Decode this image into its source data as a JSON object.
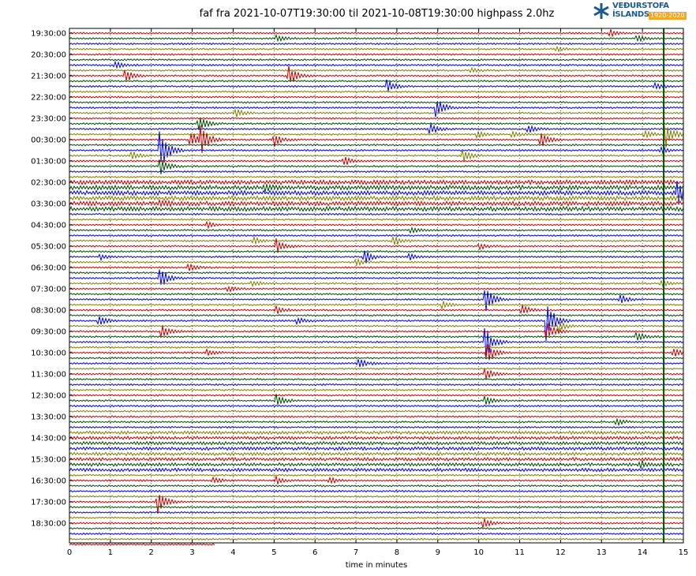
{
  "chart_data": {
    "type": "line",
    "title": "faf fra 2021-10-07T19:30:00 til 2021-10-08T19:30:00 highpass 2.0hz",
    "xlabel": "time in minutes",
    "ylabel": "",
    "xlim": [
      0,
      15
    ],
    "x_ticks": [
      "0",
      "1",
      "2",
      "3",
      "4",
      "5",
      "6",
      "7",
      "8",
      "9",
      "10",
      "11",
      "12",
      "13",
      "14",
      "15"
    ],
    "y_ticks": [
      "19:30:00",
      "20:30:00",
      "21:30:00",
      "22:30:00",
      "23:30:00",
      "00:30:00",
      "01:30:00",
      "02:30:00",
      "03:30:00",
      "04:30:00",
      "05:30:00",
      "06:30:00",
      "07:30:00",
      "08:30:00",
      "09:30:00",
      "10:30:00",
      "11:30:00",
      "12:30:00",
      "13:30:00",
      "14:30:00",
      "15:30:00",
      "16:30:00",
      "17:30:00",
      "18:30:00"
    ],
    "traces_per_hour": 4,
    "trace_count": 97,
    "last_trace_end_minute": 3.55,
    "series_colors": [
      "#cc0000",
      "#004d00",
      "#0000ff",
      "#808000"
    ],
    "grid": "vertical dotted",
    "events": [
      {
        "trace": 0,
        "minute": 13.2,
        "amp": 1.0
      },
      {
        "trace": 1,
        "minute": 5.05,
        "amp": 1.0
      },
      {
        "trace": 1,
        "minute": 13.85,
        "amp": 1.2
      },
      {
        "trace": 3,
        "minute": 11.9,
        "amp": 0.8
      },
      {
        "trace": 6,
        "minute": 1.1,
        "amp": 1.0
      },
      {
        "trace": 7,
        "minute": 9.8,
        "amp": 0.8
      },
      {
        "trace": 8,
        "minute": 1.35,
        "amp": 2.0
      },
      {
        "trace": 8,
        "minute": 5.35,
        "amp": 3.0
      },
      {
        "trace": 10,
        "minute": 7.75,
        "amp": 2.0
      },
      {
        "trace": 10,
        "minute": 14.3,
        "amp": 1.0
      },
      {
        "trace": 14,
        "minute": 8.95,
        "amp": 3.0
      },
      {
        "trace": 15,
        "minute": 4.05,
        "amp": 1.2
      },
      {
        "trace": 17,
        "minute": 3.15,
        "amp": 2.5
      },
      {
        "trace": 18,
        "minute": 8.8,
        "amp": 1.5
      },
      {
        "trace": 18,
        "minute": 11.2,
        "amp": 1.2
      },
      {
        "trace": 19,
        "minute": 9.95,
        "amp": 1.0
      },
      {
        "trace": 19,
        "minute": 10.8,
        "amp": 1.0
      },
      {
        "trace": 19,
        "minute": 14.05,
        "amp": 1.2
      },
      {
        "trace": 19,
        "minute": 14.55,
        "amp": 4.0
      },
      {
        "trace": 20,
        "minute": 2.95,
        "amp": 2.5
      },
      {
        "trace": 20,
        "minute": 3.2,
        "amp": 4.0
      },
      {
        "trace": 20,
        "minute": 5.0,
        "amp": 2.0
      },
      {
        "trace": 20,
        "minute": 11.5,
        "amp": 2.5
      },
      {
        "trace": 22,
        "minute": 2.2,
        "amp": 7.0
      },
      {
        "trace": 22,
        "minute": 14.45,
        "amp": 1.0
      },
      {
        "trace": 23,
        "minute": 1.5,
        "amp": 1.5
      },
      {
        "trace": 23,
        "minute": 9.6,
        "amp": 2.0
      },
      {
        "trace": 24,
        "minute": 6.7,
        "amp": 1.5
      },
      {
        "trace": 25,
        "minute": 2.2,
        "amp": 2.5
      },
      {
        "trace": 29,
        "minute": 4.75,
        "amp": 1.0
      },
      {
        "trace": 30,
        "minute": 14.85,
        "amp": 3.0
      },
      {
        "trace": 32,
        "minute": 2.2,
        "amp": 1.0
      },
      {
        "trace": 36,
        "minute": 3.35,
        "amp": 1.0
      },
      {
        "trace": 37,
        "minute": 8.35,
        "amp": 1.0
      },
      {
        "trace": 39,
        "minute": 4.5,
        "amp": 1.0
      },
      {
        "trace": 39,
        "minute": 7.9,
        "amp": 1.5
      },
      {
        "trace": 40,
        "minute": 5.05,
        "amp": 2.0
      },
      {
        "trace": 40,
        "minute": 10.0,
        "amp": 1.0
      },
      {
        "trace": 42,
        "minute": 0.75,
        "amp": 1.0
      },
      {
        "trace": 42,
        "minute": 7.2,
        "amp": 2.0
      },
      {
        "trace": 42,
        "minute": 8.3,
        "amp": 1.0
      },
      {
        "trace": 43,
        "minute": 7.0,
        "amp": 1.0
      },
      {
        "trace": 44,
        "minute": 2.9,
        "amp": 1.0
      },
      {
        "trace": 46,
        "minute": 2.2,
        "amp": 3.0
      },
      {
        "trace": 47,
        "minute": 4.45,
        "amp": 1.0
      },
      {
        "trace": 47,
        "minute": 14.45,
        "amp": 1.0
      },
      {
        "trace": 48,
        "minute": 3.85,
        "amp": 1.0
      },
      {
        "trace": 50,
        "minute": 10.15,
        "amp": 4.0
      },
      {
        "trace": 50,
        "minute": 13.45,
        "amp": 1.5
      },
      {
        "trace": 51,
        "minute": 9.1,
        "amp": 1.0
      },
      {
        "trace": 52,
        "minute": 11.05,
        "amp": 1.5
      },
      {
        "trace": 52,
        "minute": 5.05,
        "amp": 1.0
      },
      {
        "trace": 54,
        "minute": 0.7,
        "amp": 1.5
      },
      {
        "trace": 54,
        "minute": 5.55,
        "amp": 1.0
      },
      {
        "trace": 54,
        "minute": 11.65,
        "amp": 6.0
      },
      {
        "trace": 55,
        "minute": 11.95,
        "amp": 1.5
      },
      {
        "trace": 56,
        "minute": 2.25,
        "amp": 2.0
      },
      {
        "trace": 56,
        "minute": 11.65,
        "amp": 3.0
      },
      {
        "trace": 57,
        "minute": 13.85,
        "amp": 1.5
      },
      {
        "trace": 58,
        "minute": 10.15,
        "amp": 5.0
      },
      {
        "trace": 60,
        "minute": 3.35,
        "amp": 1.0
      },
      {
        "trace": 60,
        "minute": 10.2,
        "amp": 3.0
      },
      {
        "trace": 60,
        "minute": 14.75,
        "amp": 1.5
      },
      {
        "trace": 62,
        "minute": 7.05,
        "amp": 1.5
      },
      {
        "trace": 64,
        "minute": 10.15,
        "amp": 2.0
      },
      {
        "trace": 69,
        "minute": 5.05,
        "amp": 2.0
      },
      {
        "trace": 69,
        "minute": 10.15,
        "amp": 1.5
      },
      {
        "trace": 73,
        "minute": 13.35,
        "amp": 1.0
      },
      {
        "trace": 81,
        "minute": 13.95,
        "amp": 1.0
      },
      {
        "trace": 84,
        "minute": 3.5,
        "amp": 1.0
      },
      {
        "trace": 84,
        "minute": 5.05,
        "amp": 1.0
      },
      {
        "trace": 84,
        "minute": 6.35,
        "amp": 1.0
      },
      {
        "trace": 88,
        "minute": 2.15,
        "amp": 3.5
      },
      {
        "trace": 92,
        "minute": 10.1,
        "amp": 1.5
      }
    ],
    "persistent_spike_minute": 14.52
  },
  "logo": {
    "line1": "VEÐURSTOFA",
    "line2": "ÍSLANDS",
    "years": "1920-2020"
  }
}
